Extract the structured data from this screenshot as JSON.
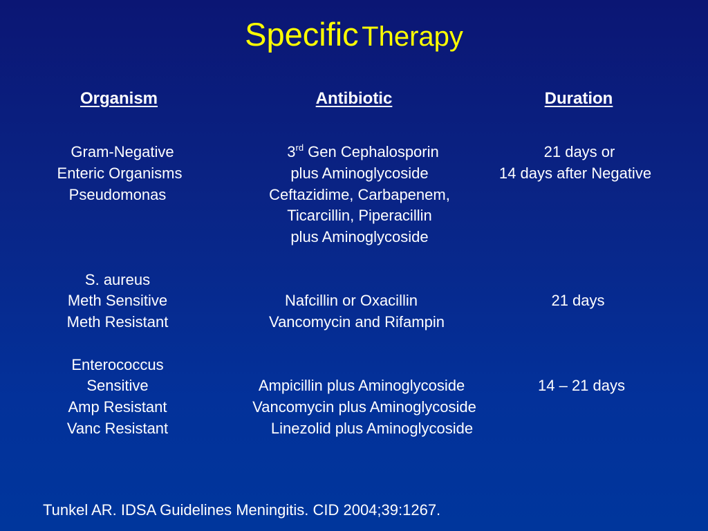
{
  "title": {
    "part1": "Specific",
    "part2": "Therapy"
  },
  "headers": {
    "organism": "Organism",
    "antibiotic": "Antibiotic",
    "duration": "Duration"
  },
  "columns": {
    "organism": [
      "Gram-Negative",
      "Enteric Organisms",
      "Pseudomonas",
      "",
      "",
      "",
      "S. aureus",
      "Meth Sensitive",
      "Meth Resistant",
      "",
      "Enterococcus",
      "Sensitive",
      "Amp Resistant",
      "Vanc Resistant"
    ],
    "antibiotic": [
      {
        "pre": "3",
        "sup": "rd",
        "post": " Gen Cephalosporin"
      },
      "plus Aminoglycoside",
      "Ceftazidime, Carbapenem,",
      "Ticarcillin, Piperacillin",
      "plus Aminoglycoside",
      "",
      "",
      "Nafcillin or Oxacillin",
      "Vancomycin and Rifampin",
      "",
      "",
      "Ampicillin plus Aminoglycoside",
      "Vancomycin plus Aminoglycoside",
      "Linezolid plus Aminoglycoside"
    ],
    "duration": [
      "21 days or",
      "14 days after Negative",
      "",
      "",
      "",
      "",
      "",
      "21 days",
      "",
      "",
      "",
      "14 – 21 days",
      "",
      ""
    ]
  },
  "citation": "Tunkel AR. IDSA Guidelines Meningitis. CID 2004;39:1267.",
  "colors": {
    "title": "#ffff00",
    "text": "#ffffff",
    "background_top": "#0b1674",
    "background_bottom": "#00369c"
  }
}
